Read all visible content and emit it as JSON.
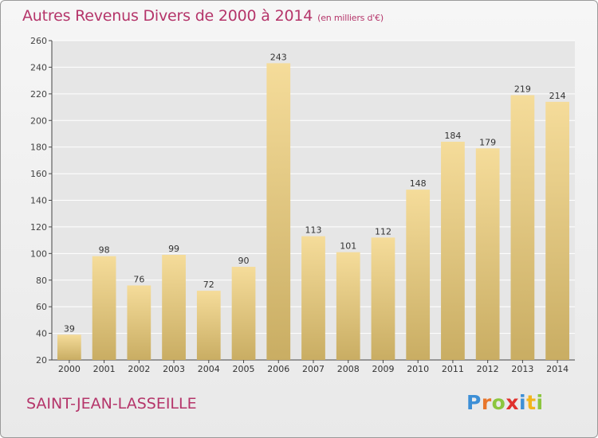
{
  "chart_data": {
    "type": "bar",
    "title": "Autres Revenus Divers de 2000 à 2014",
    "subtitle": "(en milliers d'€)",
    "categories": [
      "2000",
      "2001",
      "2002",
      "2003",
      "2004",
      "2005",
      "2006",
      "2007",
      "2008",
      "2009",
      "2010",
      "2011",
      "2012",
      "2013",
      "2014"
    ],
    "values": [
      39,
      98,
      76,
      99,
      72,
      90,
      243,
      113,
      101,
      112,
      148,
      184,
      179,
      219,
      214
    ],
    "ylim": [
      20,
      260
    ],
    "yticks": [
      20,
      40,
      60,
      80,
      100,
      120,
      140,
      160,
      180,
      200,
      220,
      240,
      260
    ],
    "grid": true,
    "bar_color_light": "#f5dc9a",
    "bar_color_dark": "#c9ad63"
  },
  "footer": {
    "commune": "SAINT-JEAN-LASSEILLE"
  },
  "logo": {
    "letters": [
      {
        "ch": "P",
        "color": "#3d8fd6"
      },
      {
        "ch": "r",
        "color": "#e8762b"
      },
      {
        "ch": "o",
        "color": "#8cc63f"
      },
      {
        "ch": "x",
        "color": "#e0312d"
      },
      {
        "ch": "i",
        "color": "#3d8fd6"
      },
      {
        "ch": "t",
        "color": "#f2b51c"
      },
      {
        "ch": "i",
        "color": "#8cc63f"
      }
    ]
  },
  "colors": {
    "title": "#b5356a",
    "axis": "#444444",
    "grid": "#ffffff"
  }
}
